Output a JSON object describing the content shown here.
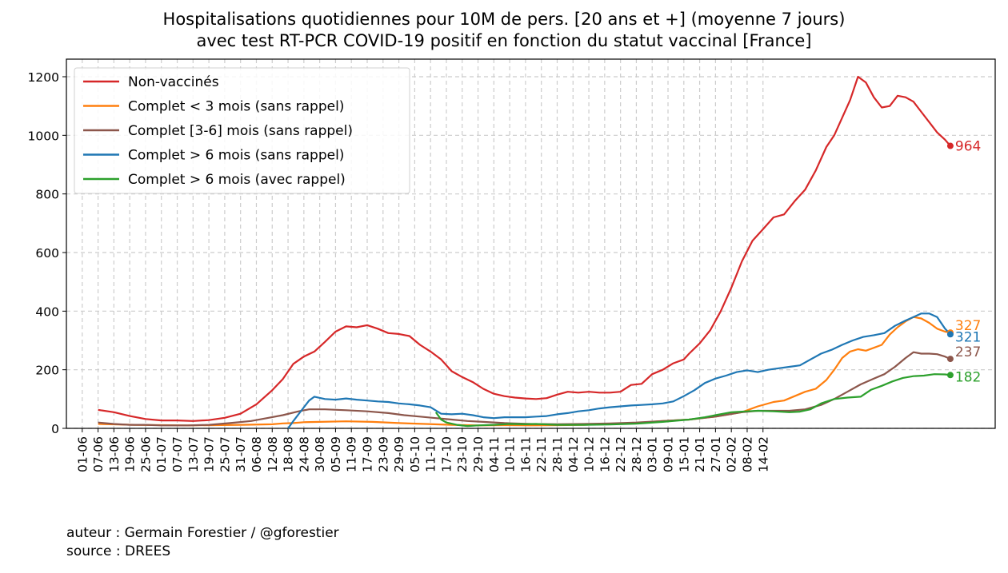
{
  "title_line1": "Hospitalisations quotidiennes pour 10M de pers. [20 ans et +] (moyenne 7 jours)",
  "title_line2": "avec test RT-PCR COVID-19 positif en fonction du statut vaccinal [France]",
  "footer": {
    "author": "auteur : Germain Forestier / @gforestier",
    "source": "source : DREES"
  },
  "chart_data": {
    "type": "line",
    "title": "Hospitalisations quotidiennes pour 10M de pers. [20 ans et +] (moyenne 7 jours) avec test RT-PCR COVID-19 positif en fonction du statut vaccinal [France]",
    "xlabel": "",
    "ylabel": "",
    "grid": true,
    "legend_position": "top-left",
    "ylim": [
      0,
      1260
    ],
    "yticks": [
      0,
      200,
      400,
      600,
      800,
      1000,
      1200
    ],
    "xticks": [
      "01-06",
      "07-06",
      "13-06",
      "19-06",
      "25-06",
      "01-07",
      "07-07",
      "13-07",
      "19-07",
      "25-07",
      "31-07",
      "06-08",
      "12-08",
      "18-08",
      "24-08",
      "30-08",
      "05-09",
      "11-09",
      "17-09",
      "23-09",
      "29-09",
      "05-10",
      "11-10",
      "17-10",
      "23-10",
      "29-10",
      "04-11",
      "10-11",
      "16-11",
      "22-11",
      "28-11",
      "04-12",
      "10-12",
      "16-12",
      "22-12",
      "28-12",
      "03-01",
      "09-01",
      "15-01",
      "21-01",
      "27-01",
      "02-02",
      "08-02",
      "14-02"
    ],
    "x_is_day_index_from": "01-06",
    "series": [
      {
        "name": "Non-vaccinés",
        "color": "#d62728",
        "end_label": "964",
        "points": [
          [
            6,
            63
          ],
          [
            12,
            55
          ],
          [
            18,
            42
          ],
          [
            24,
            32
          ],
          [
            30,
            27
          ],
          [
            36,
            27
          ],
          [
            42,
            25
          ],
          [
            48,
            28
          ],
          [
            54,
            36
          ],
          [
            60,
            50
          ],
          [
            66,
            82
          ],
          [
            72,
            130
          ],
          [
            76,
            168
          ],
          [
            80,
            220
          ],
          [
            84,
            245
          ],
          [
            88,
            262
          ],
          [
            92,
            295
          ],
          [
            96,
            330
          ],
          [
            100,
            348
          ],
          [
            104,
            345
          ],
          [
            108,
            352
          ],
          [
            112,
            340
          ],
          [
            116,
            325
          ],
          [
            120,
            322
          ],
          [
            124,
            315
          ],
          [
            128,
            285
          ],
          [
            132,
            262
          ],
          [
            136,
            235
          ],
          [
            140,
            195
          ],
          [
            144,
            175
          ],
          [
            148,
            158
          ],
          [
            152,
            135
          ],
          [
            156,
            118
          ],
          [
            160,
            110
          ],
          [
            164,
            105
          ],
          [
            168,
            102
          ],
          [
            172,
            100
          ],
          [
            176,
            103
          ],
          [
            180,
            115
          ],
          [
            184,
            125
          ],
          [
            188,
            122
          ],
          [
            192,
            125
          ],
          [
            196,
            122
          ],
          [
            200,
            122
          ],
          [
            204,
            125
          ],
          [
            208,
            148
          ],
          [
            212,
            152
          ],
          [
            216,
            185
          ],
          [
            220,
            200
          ],
          [
            224,
            222
          ],
          [
            228,
            235
          ],
          [
            230,
            255
          ],
          [
            234,
            290
          ],
          [
            238,
            335
          ],
          [
            242,
            400
          ],
          [
            246,
            480
          ],
          [
            250,
            570
          ],
          [
            254,
            640
          ],
          [
            258,
            680
          ],
          [
            262,
            720
          ],
          [
            266,
            730
          ],
          [
            270,
            775
          ],
          [
            274,
            815
          ],
          [
            278,
            880
          ],
          [
            282,
            960
          ],
          [
            285,
            1000
          ],
          [
            288,
            1060
          ],
          [
            291,
            1120
          ],
          [
            294,
            1200
          ],
          [
            297,
            1180
          ],
          [
            300,
            1130
          ],
          [
            303,
            1095
          ],
          [
            306,
            1100
          ],
          [
            309,
            1135
          ],
          [
            312,
            1130
          ],
          [
            315,
            1115
          ],
          [
            318,
            1080
          ],
          [
            321,
            1045
          ],
          [
            324,
            1010
          ],
          [
            327,
            985
          ],
          [
            329,
            964
          ]
        ]
      },
      {
        "name": "Complet < 3 mois (sans rappel)",
        "color": "#ff7f0e",
        "end_label": "327",
        "points": [
          [
            6,
            15
          ],
          [
            20,
            12
          ],
          [
            40,
            10
          ],
          [
            60,
            12
          ],
          [
            72,
            14
          ],
          [
            76,
            17
          ],
          [
            80,
            18
          ],
          [
            84,
            21
          ],
          [
            90,
            22
          ],
          [
            100,
            24
          ],
          [
            110,
            22
          ],
          [
            120,
            18
          ],
          [
            130,
            15
          ],
          [
            140,
            12
          ],
          [
            150,
            10
          ],
          [
            160,
            11
          ],
          [
            170,
            10
          ],
          [
            180,
            11
          ],
          [
            190,
            12
          ],
          [
            200,
            15
          ],
          [
            210,
            18
          ],
          [
            220,
            25
          ],
          [
            230,
            30
          ],
          [
            240,
            40
          ],
          [
            250,
            55
          ],
          [
            256,
            75
          ],
          [
            262,
            90
          ],
          [
            266,
            95
          ],
          [
            270,
            110
          ],
          [
            274,
            125
          ],
          [
            278,
            135
          ],
          [
            282,
            165
          ],
          [
            285,
            200
          ],
          [
            288,
            240
          ],
          [
            291,
            262
          ],
          [
            294,
            270
          ],
          [
            297,
            265
          ],
          [
            300,
            275
          ],
          [
            303,
            285
          ],
          [
            306,
            320
          ],
          [
            309,
            345
          ],
          [
            312,
            365
          ],
          [
            315,
            380
          ],
          [
            318,
            375
          ],
          [
            321,
            360
          ],
          [
            324,
            340
          ],
          [
            327,
            330
          ],
          [
            329,
            327
          ]
        ]
      },
      {
        "name": "Complet [3-6] mois (sans rappel)",
        "color": "#8c564b",
        "end_label": "237",
        "points": [
          [
            6,
            20
          ],
          [
            12,
            15
          ],
          [
            18,
            12
          ],
          [
            24,
            12
          ],
          [
            30,
            10
          ],
          [
            40,
            10
          ],
          [
            48,
            12
          ],
          [
            56,
            18
          ],
          [
            64,
            25
          ],
          [
            70,
            35
          ],
          [
            76,
            45
          ],
          [
            82,
            58
          ],
          [
            86,
            65
          ],
          [
            92,
            65
          ],
          [
            100,
            62
          ],
          [
            108,
            58
          ],
          [
            116,
            52
          ],
          [
            122,
            45
          ],
          [
            128,
            40
          ],
          [
            134,
            35
          ],
          [
            140,
            30
          ],
          [
            146,
            25
          ],
          [
            152,
            22
          ],
          [
            160,
            18
          ],
          [
            170,
            15
          ],
          [
            180,
            14
          ],
          [
            190,
            15
          ],
          [
            200,
            17
          ],
          [
            210,
            20
          ],
          [
            220,
            25
          ],
          [
            230,
            30
          ],
          [
            240,
            40
          ],
          [
            250,
            55
          ],
          [
            256,
            60
          ],
          [
            262,
            60
          ],
          [
            268,
            60
          ],
          [
            274,
            65
          ],
          [
            280,
            80
          ],
          [
            285,
            100
          ],
          [
            290,
            125
          ],
          [
            295,
            150
          ],
          [
            300,
            170
          ],
          [
            304,
            185
          ],
          [
            308,
            210
          ],
          [
            312,
            240
          ],
          [
            315,
            260
          ],
          [
            318,
            255
          ],
          [
            321,
            255
          ],
          [
            324,
            253
          ],
          [
            327,
            245
          ],
          [
            329,
            237
          ]
        ]
      },
      {
        "name": "Complet > 6 mois (sans rappel)",
        "color": "#1f77b4",
        "end_label": "321",
        "points": [
          [
            78,
            0
          ],
          [
            80,
            25
          ],
          [
            83,
            60
          ],
          [
            86,
            95
          ],
          [
            88,
            108
          ],
          [
            92,
            100
          ],
          [
            96,
            98
          ],
          [
            100,
            102
          ],
          [
            104,
            98
          ],
          [
            108,
            95
          ],
          [
            112,
            92
          ],
          [
            116,
            90
          ],
          [
            120,
            85
          ],
          [
            124,
            82
          ],
          [
            128,
            78
          ],
          [
            132,
            72
          ],
          [
            136,
            50
          ],
          [
            140,
            48
          ],
          [
            144,
            50
          ],
          [
            148,
            45
          ],
          [
            152,
            38
          ],
          [
            156,
            35
          ],
          [
            160,
            38
          ],
          [
            164,
            38
          ],
          [
            168,
            38
          ],
          [
            172,
            40
          ],
          [
            176,
            42
          ],
          [
            180,
            48
          ],
          [
            184,
            52
          ],
          [
            188,
            58
          ],
          [
            192,
            62
          ],
          [
            196,
            68
          ],
          [
            200,
            72
          ],
          [
            204,
            75
          ],
          [
            208,
            78
          ],
          [
            212,
            80
          ],
          [
            216,
            82
          ],
          [
            220,
            85
          ],
          [
            224,
            92
          ],
          [
            228,
            110
          ],
          [
            232,
            130
          ],
          [
            236,
            155
          ],
          [
            240,
            170
          ],
          [
            244,
            180
          ],
          [
            248,
            192
          ],
          [
            252,
            198
          ],
          [
            256,
            192
          ],
          [
            260,
            200
          ],
          [
            264,
            205
          ],
          [
            268,
            210
          ],
          [
            272,
            215
          ],
          [
            276,
            235
          ],
          [
            280,
            255
          ],
          [
            284,
            268
          ],
          [
            288,
            285
          ],
          [
            292,
            300
          ],
          [
            296,
            312
          ],
          [
            300,
            318
          ],
          [
            304,
            325
          ],
          [
            308,
            350
          ],
          [
            312,
            368
          ],
          [
            315,
            380
          ],
          [
            318,
            392
          ],
          [
            321,
            392
          ],
          [
            324,
            380
          ],
          [
            327,
            340
          ],
          [
            329,
            321
          ]
        ]
      },
      {
        "name": "Complet > 6 mois (avec rappel)",
        "color": "#2ca02c",
        "end_label": "182",
        "points": [
          [
            134,
            55
          ],
          [
            136,
            30
          ],
          [
            138,
            20
          ],
          [
            142,
            12
          ],
          [
            146,
            8
          ],
          [
            150,
            10
          ],
          [
            156,
            12
          ],
          [
            162,
            15
          ],
          [
            168,
            14
          ],
          [
            172,
            15
          ],
          [
            180,
            12
          ],
          [
            190,
            12
          ],
          [
            200,
            13
          ],
          [
            210,
            16
          ],
          [
            220,
            22
          ],
          [
            230,
            30
          ],
          [
            236,
            38
          ],
          [
            240,
            45
          ],
          [
            246,
            55
          ],
          [
            252,
            58
          ],
          [
            256,
            60
          ],
          [
            262,
            58
          ],
          [
            268,
            55
          ],
          [
            272,
            57
          ],
          [
            276,
            65
          ],
          [
            280,
            85
          ],
          [
            285,
            100
          ],
          [
            290,
            105
          ],
          [
            295,
            108
          ],
          [
            299,
            132
          ],
          [
            303,
            145
          ],
          [
            307,
            160
          ],
          [
            311,
            172
          ],
          [
            315,
            178
          ],
          [
            319,
            180
          ],
          [
            323,
            185
          ],
          [
            327,
            184
          ],
          [
            329,
            182
          ]
        ]
      }
    ]
  }
}
